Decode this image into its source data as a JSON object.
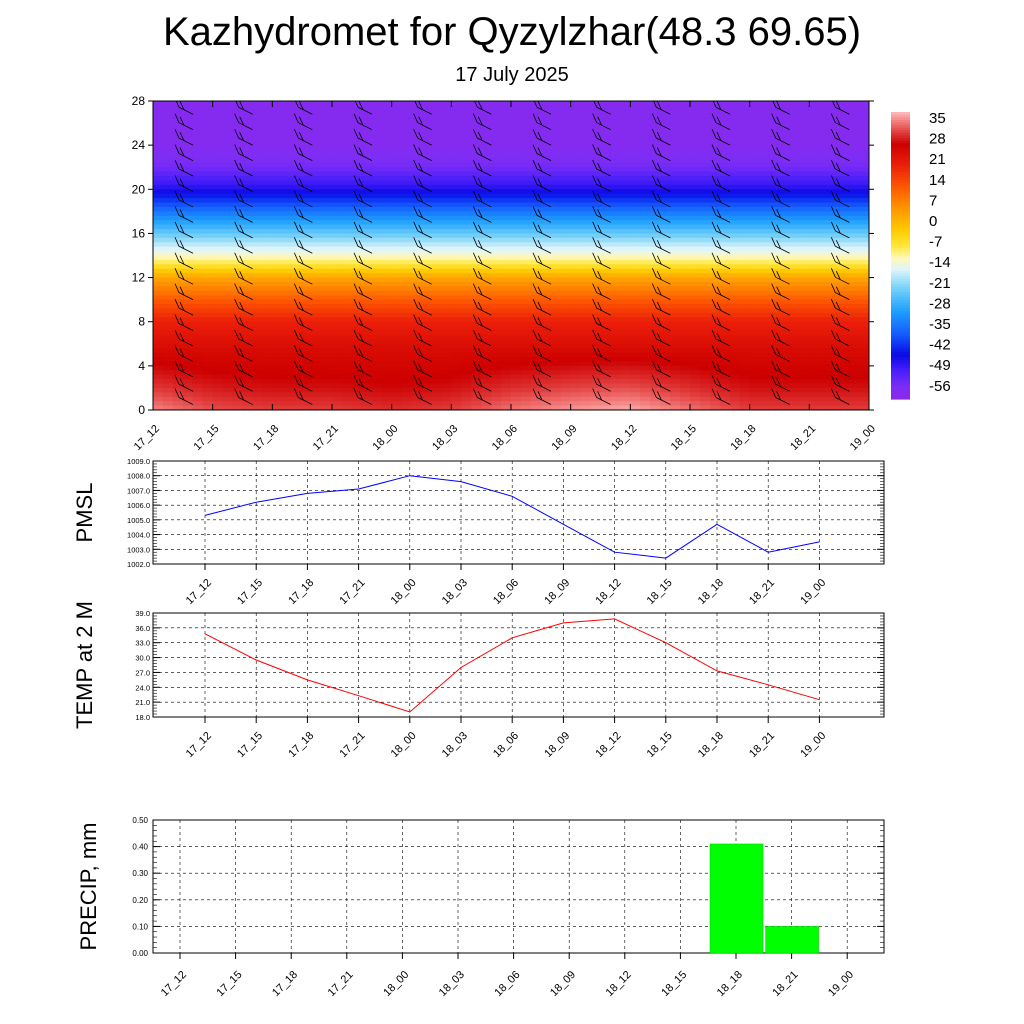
{
  "title": "Kazhydromet for Qyzylzhar(48.3 69.65)",
  "subtitle": "17 July 2025",
  "x_ticks": [
    "17_12",
    "17_15",
    "17_18",
    "17_21",
    "18_00",
    "18_03",
    "18_06",
    "18_09",
    "18_12",
    "18_15",
    "18_18",
    "18_21",
    "19_00"
  ],
  "chart_data": [
    {
      "type": "heatmap",
      "title": "",
      "xlabel": "",
      "ylabel": "",
      "x": [
        "17_12",
        "17_15",
        "17_18",
        "17_21",
        "18_00",
        "18_03",
        "18_06",
        "18_09",
        "18_12",
        "18_15",
        "18_18",
        "18_21",
        "19_00"
      ],
      "y_ticks": [
        0,
        4,
        8,
        12,
        16,
        20,
        24,
        28
      ],
      "ylim": [
        0,
        28
      ],
      "colorbar_ticks": [
        35,
        28,
        21,
        14,
        7,
        0,
        -7,
        -14,
        -21,
        -28,
        -35,
        -42,
        -49,
        -56
      ],
      "colorbar_range": [
        -60,
        38
      ],
      "temperature_profile": [
        [
          0,
          31
        ],
        [
          2,
          28
        ],
        [
          5,
          25
        ],
        [
          8,
          20
        ],
        [
          10,
          12
        ],
        [
          12,
          3
        ],
        [
          13.5,
          -10
        ],
        [
          15,
          -18
        ],
        [
          18,
          -35
        ],
        [
          20,
          -47
        ],
        [
          22,
          -55
        ],
        [
          24,
          -58
        ],
        [
          28,
          -58
        ]
      ],
      "surface_anomaly": [
        4,
        1,
        0,
        0,
        -1,
        0,
        3,
        5,
        6,
        3,
        0,
        0,
        0
      ],
      "wind_barbs": true
    },
    {
      "type": "line",
      "ylabel": "PMSL",
      "x": [
        "17_12",
        "17_15",
        "17_18",
        "17_21",
        "18_00",
        "18_03",
        "18_06",
        "18_09",
        "18_12",
        "18_15",
        "18_18",
        "18_21",
        "19_00"
      ],
      "series": [
        {
          "values": [
            1005.3,
            1006.2,
            1006.8,
            1007.1,
            1008.0,
            1007.6,
            1006.6,
            1004.7,
            1002.8,
            1002.4,
            1004.7,
            1002.8,
            1003.5
          ]
        }
      ],
      "ylim": [
        1002.0,
        1009.0
      ],
      "y_ticks": [
        "1002.0",
        "1003.0",
        "1004.0",
        "1005.0",
        "1006.0",
        "1007.0",
        "1008.0",
        "1009.0"
      ],
      "color": "#0000ff",
      "grid": true
    },
    {
      "type": "line",
      "ylabel": "TEMP at 2 M",
      "x": [
        "17_12",
        "17_15",
        "17_18",
        "17_21",
        "18_00",
        "18_03",
        "18_06",
        "18_09",
        "18_12",
        "18_15",
        "18_18",
        "18_21",
        "19_00"
      ],
      "series": [
        {
          "values": [
            34.8,
            29.5,
            25.5,
            22.3,
            19.0,
            28.0,
            34.0,
            37.0,
            37.8,
            33.0,
            27.3,
            24.5,
            21.5
          ]
        }
      ],
      "ylim": [
        18.0,
        39.0
      ],
      "y_ticks": [
        "18.0",
        "21.0",
        "24.0",
        "27.0",
        "30.0",
        "33.0",
        "36.0",
        "39.0"
      ],
      "color": "#ff0000",
      "grid": true
    },
    {
      "type": "bar",
      "ylabel": "PRECIP, mm",
      "categories": [
        "17_12",
        "17_15",
        "17_18",
        "17_21",
        "18_00",
        "18_03",
        "18_06",
        "18_09",
        "18_12",
        "18_15",
        "18_18",
        "18_21",
        "19_00"
      ],
      "values": [
        0,
        0,
        0,
        0,
        0,
        0,
        0,
        0,
        0,
        0,
        0.41,
        0.1,
        0
      ],
      "ylim": [
        0.0,
        0.5
      ],
      "y_ticks": [
        "0.00",
        "0.10",
        "0.20",
        "0.30",
        "0.40",
        "0.50"
      ],
      "color": "#00ff00",
      "grid": true
    }
  ]
}
